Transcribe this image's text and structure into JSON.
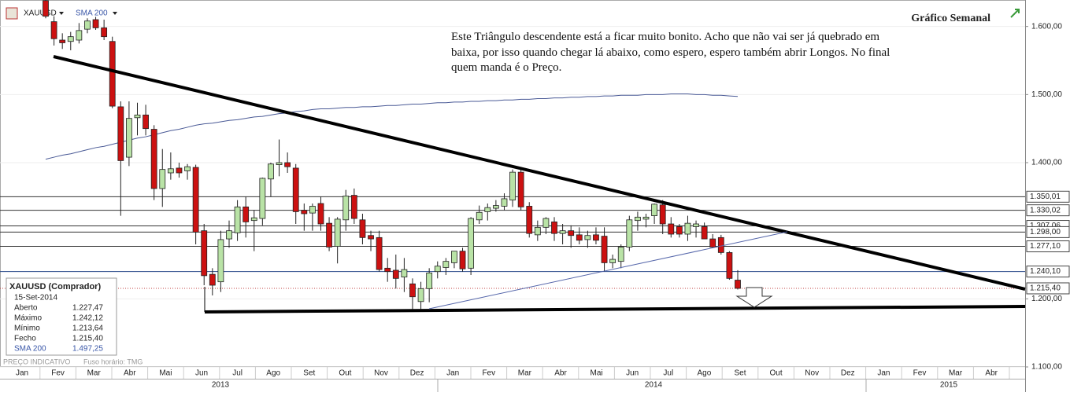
{
  "chart_data": {
    "type": "candlestick",
    "title": "Gráfico Semanal",
    "annotation": [
      "Este Triângulo descendente está a ficar muito bonito. Acho que não vai ser já quebrado em",
      "baixa, por isso quando chegar lá abaixo, como espero, espero também abrir Longos. No final",
      "quem manda é o Preço."
    ],
    "series": [
      {
        "name": "XAUUSD",
        "up_color": "#b9e3a6",
        "down_color": "#cc1111",
        "open": [
          1638,
          1607,
          1580,
          1578,
          1580,
          1596,
          1610,
          1598,
          1578,
          1482,
          1408,
          1466,
          1470,
          1449,
          1362,
          1385,
          1392,
          1388,
          1393,
          1300,
          1236,
          1225,
          1288,
          1297,
          1335,
          1315,
          1318,
          1376,
          1397,
          1400,
          1392,
          1330,
          1326,
          1340,
          1311,
          1277,
          1316,
          1352,
          1316,
          1293,
          1290,
          1245,
          1242,
          1232,
          1222,
          1196,
          1215,
          1240,
          1246,
          1253,
          1270,
          1245,
          1316,
          1328,
          1333,
          1336,
          1345,
          1386,
          1336,
          1294,
          1305,
          1313,
          1296,
          1300,
          1294,
          1287,
          1294,
          1292,
          1253,
          1255,
          1276,
          1315,
          1317,
          1322,
          1338,
          1310,
          1306,
          1295,
          1306,
          1306,
          1288,
          1290,
          1268,
          1227.47
        ],
        "high": [
          1640,
          1615,
          1590,
          1592,
          1605,
          1612,
          1614,
          1610,
          1585,
          1490,
          1490,
          1488,
          1485,
          1455,
          1420,
          1415,
          1400,
          1398,
          1397,
          1310,
          1245,
          1300,
          1315,
          1345,
          1350,
          1330,
          1378,
          1400,
          1434,
          1415,
          1398,
          1340,
          1340,
          1350,
          1320,
          1320,
          1360,
          1362,
          1325,
          1300,
          1300,
          1260,
          1265,
          1260,
          1230,
          1225,
          1245,
          1255,
          1260,
          1270,
          1275,
          1320,
          1337,
          1340,
          1345,
          1355,
          1390,
          1392,
          1342,
          1315,
          1320,
          1320,
          1310,
          1308,
          1305,
          1300,
          1305,
          1305,
          1265,
          1280,
          1322,
          1328,
          1325,
          1340,
          1345,
          1320,
          1310,
          1322,
          1315,
          1312,
          1295,
          1294,
          1270,
          1242.12
        ],
        "low": [
          1612,
          1572,
          1567,
          1565,
          1575,
          1590,
          1595,
          1580,
          1480,
          1322,
          1395,
          1440,
          1440,
          1345,
          1335,
          1375,
          1378,
          1375,
          1280,
          1220,
          1205,
          1210,
          1275,
          1285,
          1290,
          1270,
          1308,
          1350,
          1380,
          1385,
          1310,
          1300,
          1300,
          1300,
          1270,
          1252,
          1300,
          1310,
          1280,
          1270,
          1240,
          1225,
          1215,
          1210,
          1185,
          1185,
          1195,
          1230,
          1235,
          1245,
          1240,
          1235,
          1310,
          1315,
          1328,
          1330,
          1335,
          1330,
          1290,
          1285,
          1295,
          1285,
          1280,
          1275,
          1280,
          1275,
          1280,
          1240,
          1245,
          1245,
          1270,
          1300,
          1305,
          1310,
          1295,
          1290,
          1290,
          1285,
          1290,
          1288,
          1275,
          1265,
          1228,
          1213.64
        ],
        "close": [
          1615,
          1582,
          1576,
          1585,
          1594,
          1608,
          1598,
          1585,
          1483,
          1403,
          1465,
          1470,
          1450,
          1362,
          1390,
          1391,
          1385,
          1394,
          1298,
          1234,
          1220,
          1287,
          1300,
          1335,
          1313,
          1319,
          1377,
          1398,
          1400,
          1394,
          1328,
          1325,
          1336,
          1310,
          1276,
          1317,
          1351,
          1318,
          1290,
          1288,
          1243,
          1240,
          1230,
          1243,
          1203,
          1215,
          1238,
          1248,
          1255,
          1270,
          1244,
          1318,
          1327,
          1334,
          1337,
          1347,
          1386,
          1335,
          1296,
          1305,
          1318,
          1296,
          1300,
          1293,
          1286,
          1293,
          1286,
          1253,
          1258,
          1276,
          1316,
          1320,
          1320,
          1339,
          1310,
          1295,
          1295,
          1311,
          1310,
          1288,
          1276,
          1268,
          1230,
          1215.4
        ]
      },
      {
        "name": "SMA 200",
        "color": "#4a5a96",
        "values": [
          1405,
          1408,
          1411,
          1413,
          1416,
          1419,
          1422,
          1424,
          1427,
          1430,
          1433,
          1436,
          1438,
          1441,
          1444,
          1447,
          1449,
          1452,
          1455,
          1457,
          1458,
          1460,
          1462,
          1463,
          1465,
          1467,
          1468,
          1470,
          1472,
          1473,
          1475,
          1476,
          1478,
          1479,
          1479,
          1480,
          1481,
          1481,
          1482,
          1482,
          1483,
          1484,
          1484,
          1485,
          1486,
          1486,
          1487,
          1488,
          1488,
          1489,
          1489,
          1490,
          1490,
          1491,
          1491,
          1492,
          1492,
          1493,
          1493,
          1494,
          1494,
          1495,
          1495,
          1496,
          1496,
          1497,
          1497,
          1498,
          1498,
          1499,
          1499,
          1499,
          1500,
          1500,
          1500,
          1501,
          1501,
          1501,
          1500,
          1500,
          1499,
          1499,
          1498,
          1497.25
        ]
      }
    ],
    "ylim": [
      1100,
      1640
    ],
    "yticks": [
      {
        "value": 1100,
        "label": "1.100,00"
      },
      {
        "value": 1200,
        "label": "1.200,00"
      },
      {
        "value": 1400,
        "label": "1.400,00"
      },
      {
        "value": 1500,
        "label": "1.500,00"
      },
      {
        "value": 1600,
        "label": "1.600,00"
      }
    ],
    "levels": [
      {
        "value": 1350.01,
        "label": "1.350,01",
        "color": "#333"
      },
      {
        "value": 1330.02,
        "label": "1.330,02",
        "color": "#333"
      },
      {
        "value": 1307.06,
        "label": "1.307,06",
        "color": "#333"
      },
      {
        "value": 1298,
        "label": "1.298,00",
        "color": "#333"
      },
      {
        "value": 1277.1,
        "label": "1.277,10",
        "color": "#333"
      },
      {
        "value": 1240.1,
        "label": "1.240,10",
        "color": "#2a4a8a"
      },
      {
        "value": 1215.4,
        "label": "1.215,40",
        "color": "#c04040"
      }
    ],
    "months": [
      "Jan",
      "Fev",
      "Mar",
      "Abr",
      "Mai",
      "Jun",
      "Jul",
      "Ago",
      "Set",
      "Out",
      "Nov",
      "Dez",
      "Jan",
      "Fev",
      "Mar",
      "Abr",
      "Mai",
      "Jun",
      "Jul",
      "Ago",
      "Set",
      "Out",
      "Nov",
      "Dez",
      "Jan",
      "Fev",
      "Mar",
      "Abr"
    ],
    "years": [
      "2013",
      "2014",
      "2015"
    ],
    "info": {
      "title": "XAUUSD (Comprador)",
      "date": "15-Set-2014",
      "rows": [
        {
          "label": "Aberto",
          "value": "1.227,47"
        },
        {
          "label": "Máximo",
          "value": "1.242,12"
        },
        {
          "label": "Mínimo",
          "value": "1.213,64"
        },
        {
          "label": "Fecho",
          "value": "1.215,40"
        },
        {
          "label": "SMA 200",
          "value": "1.497,25"
        }
      ]
    },
    "footer": [
      "PREÇO INDICATIVO",
      "Fuso horário: TMG"
    ]
  }
}
